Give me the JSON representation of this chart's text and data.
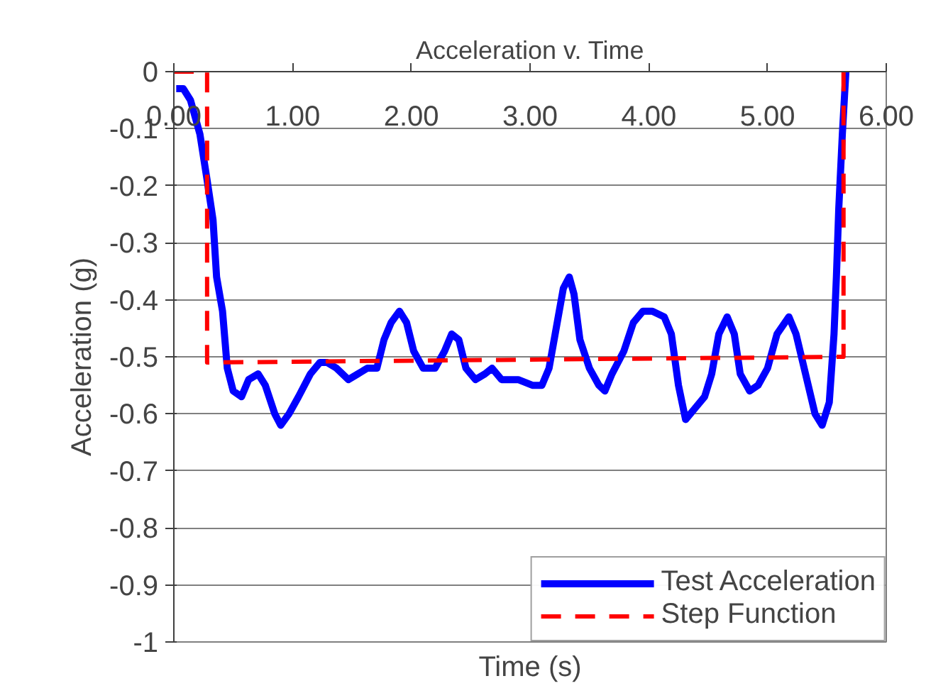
{
  "chart_data": {
    "type": "line",
    "title": "Acceleration v. Time",
    "xlabel": "Time (s)",
    "ylabel": "Acceleration (g)",
    "xlim": [
      0,
      6
    ],
    "ylim": [
      -1,
      0
    ],
    "xticks": [
      {
        "value": 0,
        "label": "0.00"
      },
      {
        "value": 1,
        "label": "1.00"
      },
      {
        "value": 2,
        "label": "2.00"
      },
      {
        "value": 3,
        "label": "3.00"
      },
      {
        "value": 4,
        "label": "4.00"
      },
      {
        "value": 5,
        "label": "5.00"
      },
      {
        "value": 6,
        "label": "6.00"
      }
    ],
    "yticks": [
      0,
      -0.1,
      -0.2,
      -0.3,
      -0.4,
      -0.5,
      -0.6,
      -0.7,
      -0.8,
      -0.9,
      -1
    ],
    "grid": "y",
    "legend": "bottom right",
    "series": [
      {
        "name": "Test Acceleration",
        "color": "#0000ff",
        "line_style": "solid",
        "x": [
          0.02,
          0.08,
          0.14,
          0.22,
          0.28,
          0.33,
          0.36,
          0.41,
          0.45,
          0.5,
          0.57,
          0.63,
          0.71,
          0.77,
          0.85,
          0.9,
          0.97,
          1.05,
          1.15,
          1.23,
          1.29,
          1.37,
          1.47,
          1.55,
          1.63,
          1.71,
          1.77,
          1.83,
          1.9,
          1.96,
          2.02,
          2.1,
          2.2,
          2.28,
          2.34,
          2.4,
          2.46,
          2.54,
          2.62,
          2.68,
          2.76,
          2.9,
          3.02,
          3.1,
          3.16,
          3.22,
          3.28,
          3.33,
          3.37,
          3.42,
          3.5,
          3.58,
          3.63,
          3.69,
          3.79,
          3.87,
          3.95,
          4.03,
          4.13,
          4.19,
          4.25,
          4.31,
          4.39,
          4.47,
          4.53,
          4.59,
          4.66,
          4.72,
          4.77,
          4.85,
          4.92,
          5.0,
          5.08,
          5.18,
          5.24,
          5.32,
          5.4,
          5.46,
          5.52,
          5.56,
          5.58,
          5.6,
          5.63,
          5.66
        ],
        "values": [
          -0.03,
          -0.03,
          -0.05,
          -0.11,
          -0.19,
          -0.26,
          -0.36,
          -0.42,
          -0.52,
          -0.56,
          -0.57,
          -0.54,
          -0.53,
          -0.55,
          -0.6,
          -0.62,
          -0.6,
          -0.57,
          -0.53,
          -0.51,
          -0.51,
          -0.52,
          -0.54,
          -0.53,
          -0.52,
          -0.52,
          -0.47,
          -0.44,
          -0.42,
          -0.44,
          -0.49,
          -0.52,
          -0.52,
          -0.49,
          -0.46,
          -0.47,
          -0.52,
          -0.54,
          -0.53,
          -0.52,
          -0.54,
          -0.54,
          -0.55,
          -0.55,
          -0.52,
          -0.45,
          -0.38,
          -0.36,
          -0.39,
          -0.47,
          -0.52,
          -0.55,
          -0.56,
          -0.53,
          -0.49,
          -0.44,
          -0.42,
          -0.42,
          -0.43,
          -0.46,
          -0.55,
          -0.61,
          -0.59,
          -0.57,
          -0.53,
          -0.46,
          -0.43,
          -0.46,
          -0.53,
          -0.56,
          -0.55,
          -0.52,
          -0.46,
          -0.43,
          -0.46,
          -0.53,
          -0.6,
          -0.62,
          -0.58,
          -0.46,
          -0.36,
          -0.24,
          -0.11,
          0
        ]
      },
      {
        "name": "Step Function",
        "color": "#ff0000",
        "line_style": "dashed",
        "x": [
          0,
          0.28,
          0.28,
          5.64,
          5.64
        ],
        "values": [
          0,
          0,
          -0.51,
          -0.5,
          0
        ]
      }
    ]
  }
}
